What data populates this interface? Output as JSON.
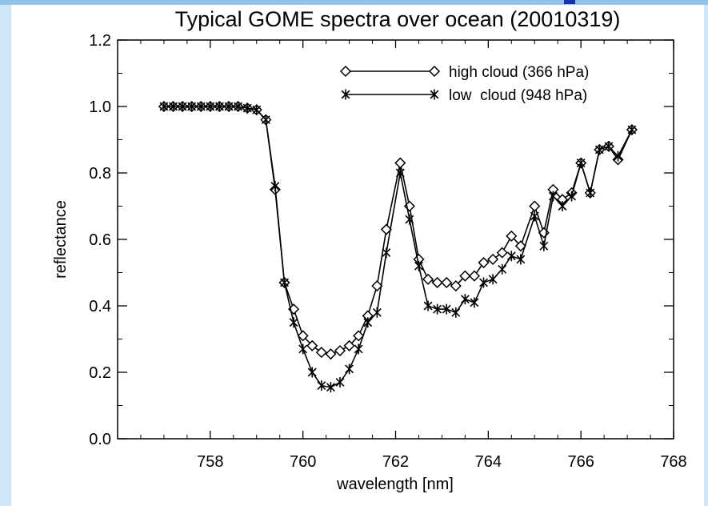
{
  "chart_data": {
    "type": "line",
    "title": "Typical GOME spectra over ocean (20010319)",
    "xlabel": "wavelength [nm]",
    "ylabel": "reflectance",
    "xlim": [
      756,
      768
    ],
    "ylim": [
      0.0,
      1.2
    ],
    "xticks": [
      758,
      760,
      762,
      764,
      766,
      768
    ],
    "xtick_labels": [
      "758",
      "760",
      "762",
      "764",
      "766",
      "768"
    ],
    "yticks": [
      0.0,
      0.2,
      0.4,
      0.6,
      0.8,
      1.0,
      1.2
    ],
    "ytick_labels": [
      "0.0",
      "0.2",
      "0.4",
      "0.6",
      "0.8",
      "1.0",
      "1.2"
    ],
    "grid": false,
    "legend_position": "top-right",
    "series": [
      {
        "name": "high cloud (366 hPa)",
        "marker": "diamond",
        "color": "#000000",
        "x": [
          757.0,
          757.2,
          757.4,
          757.6,
          757.8,
          758.0,
          758.2,
          758.4,
          758.6,
          758.8,
          759.0,
          759.2,
          759.4,
          759.6,
          759.8,
          760.0,
          760.2,
          760.4,
          760.6,
          760.8,
          761.0,
          761.2,
          761.4,
          761.6,
          761.8,
          762.1,
          762.3,
          762.5,
          762.7,
          762.9,
          763.1,
          763.3,
          763.5,
          763.7,
          763.9,
          764.1,
          764.3,
          764.5,
          764.7,
          765.0,
          765.2,
          765.4,
          765.6,
          765.8,
          766.0,
          766.2,
          766.4,
          766.6,
          766.8,
          767.1
        ],
        "y": [
          1.0,
          1.0,
          1.0,
          1.0,
          1.0,
          1.0,
          1.0,
          1.0,
          1.0,
          0.995,
          0.99,
          0.96,
          0.75,
          0.47,
          0.39,
          0.31,
          0.28,
          0.26,
          0.255,
          0.265,
          0.28,
          0.31,
          0.37,
          0.46,
          0.63,
          0.83,
          0.7,
          0.54,
          0.48,
          0.47,
          0.47,
          0.46,
          0.49,
          0.49,
          0.53,
          0.54,
          0.56,
          0.61,
          0.58,
          0.7,
          0.62,
          0.75,
          0.72,
          0.74,
          0.83,
          0.74,
          0.87,
          0.88,
          0.84,
          0.93
        ]
      },
      {
        "name": "low  cloud (948 hPa)",
        "marker": "asterisk",
        "color": "#000000",
        "x": [
          757.0,
          757.2,
          757.4,
          757.6,
          757.8,
          758.0,
          758.2,
          758.4,
          758.6,
          758.8,
          759.0,
          759.2,
          759.4,
          759.6,
          759.8,
          760.0,
          760.2,
          760.4,
          760.6,
          760.8,
          761.0,
          761.2,
          761.4,
          761.6,
          761.8,
          762.1,
          762.3,
          762.5,
          762.7,
          762.9,
          763.1,
          763.3,
          763.5,
          763.7,
          763.9,
          764.1,
          764.3,
          764.5,
          764.7,
          765.0,
          765.2,
          765.4,
          765.6,
          765.8,
          766.0,
          766.2,
          766.4,
          766.6,
          766.8,
          767.1
        ],
        "y": [
          1.0,
          1.0,
          1.0,
          1.0,
          1.0,
          1.0,
          1.0,
          1.0,
          1.0,
          0.995,
          0.99,
          0.96,
          0.76,
          0.47,
          0.35,
          0.27,
          0.2,
          0.16,
          0.155,
          0.17,
          0.21,
          0.27,
          0.35,
          0.38,
          0.56,
          0.8,
          0.66,
          0.52,
          0.4,
          0.39,
          0.39,
          0.38,
          0.42,
          0.41,
          0.47,
          0.48,
          0.51,
          0.55,
          0.54,
          0.67,
          0.58,
          0.73,
          0.7,
          0.73,
          0.83,
          0.74,
          0.87,
          0.88,
          0.85,
          0.93
        ]
      }
    ]
  }
}
